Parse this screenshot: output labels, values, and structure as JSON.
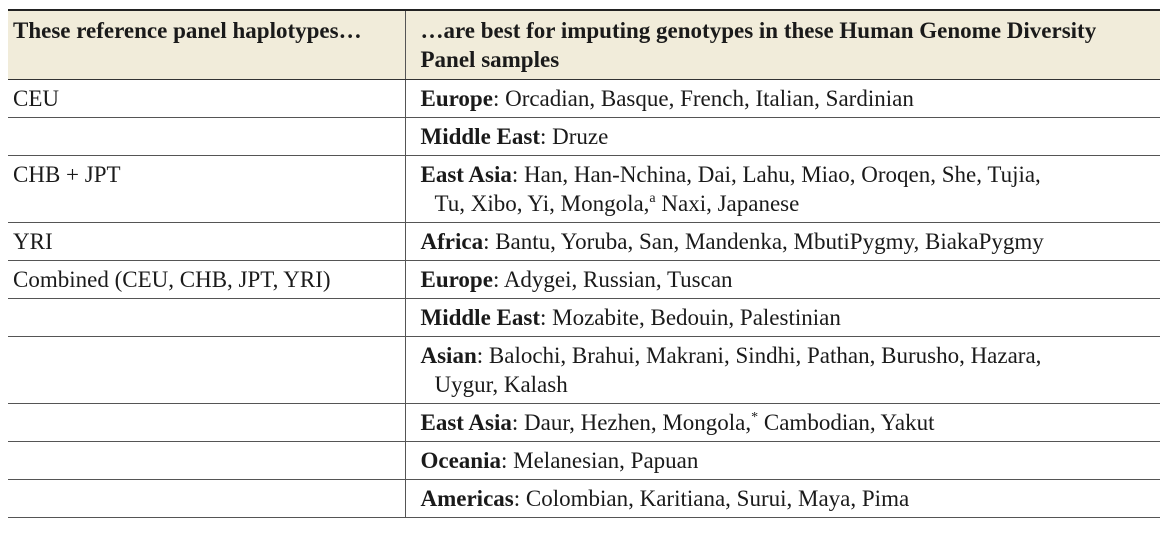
{
  "headers": {
    "col1": "These reference panel haplotypes…",
    "col2": "…are best for imputing genotypes in these Human Genome Diversity Panel samples"
  },
  "rows": [
    {
      "panel": "CEU",
      "region": "Europe",
      "sep": ": ",
      "line1": "Orcadian, Basque, French, Italian, Sardinian",
      "sup": "",
      "line1b": "",
      "line2": ""
    },
    {
      "panel": "",
      "region": "Middle East",
      "sep": ": ",
      "line1": "Druze",
      "sup": "",
      "line1b": "",
      "line2": ""
    },
    {
      "panel": "CHB + JPT",
      "region": "East Asia",
      "sep": ": ",
      "line1": "Han, Han-Nchina, Dai, Lahu, Miao, Oroqen, She, Tujia,",
      "sup": "",
      "line1b": "",
      "line2": "Tu, Xibo, Yi, Mongola,",
      "line2sup": "a",
      "line2b": " Naxi, Japanese"
    },
    {
      "panel": "YRI",
      "region": "Africa",
      "sep": ": ",
      "line1": "Bantu, Yoruba, San, Mandenka, MbutiPygmy, BiakaPygmy",
      "sup": "",
      "line1b": "",
      "line2": ""
    },
    {
      "panel": "Combined (CEU, CHB, JPT, YRI)",
      "region": "Europe",
      "sep": ": ",
      "line1": "Adygei, Russian, Tuscan",
      "sup": "",
      "line1b": "",
      "line2": ""
    },
    {
      "panel": "",
      "region": "Middle East",
      "sep": ": ",
      "line1": "Mozabite, Bedouin, Palestinian",
      "sup": "",
      "line1b": "",
      "line2": ""
    },
    {
      "panel": "",
      "region": "Asian",
      "sep": ": ",
      "line1": "Balochi, Brahui, Makrani, Sindhi, Pathan, Burusho, Hazara,",
      "sup": "",
      "line1b": "",
      "line2": "Uygur, Kalash"
    },
    {
      "panel": "",
      "region": "East Asia",
      "sep": ": ",
      "line1": "Daur, Hezhen, Mongola,",
      "sup": "*",
      "line1b": " Cambodian, Yakut",
      "line2": ""
    },
    {
      "panel": "",
      "region": "Oceania",
      "sep": ": ",
      "line1": "Melanesian, Papuan",
      "sup": "",
      "line1b": "",
      "line2": ""
    },
    {
      "panel": "",
      "region": "Americas",
      "sep": ": ",
      "line1": "Colombian, Karitiana, Surui, Maya, Pima",
      "sup": "",
      "line1b": "",
      "line2": ""
    }
  ]
}
